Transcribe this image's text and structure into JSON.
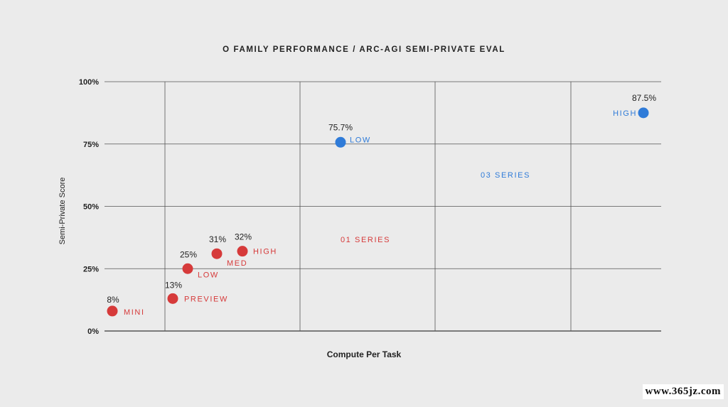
{
  "chart_data": {
    "type": "scatter",
    "title": "O FAMILY PERFORMANCE / ARC-AGI SEMI-PRIVATE EVAL",
    "xlabel": "Compute Per Task",
    "ylabel": "Semi-Private Score",
    "ylim": [
      0,
      100
    ],
    "y_ticks": [
      "0%",
      "25%",
      "50%",
      "75%",
      "100%"
    ],
    "x_ticks": [],
    "grid": true,
    "colors": {
      "o1": "#d63a3a",
      "o3": "#2f7bd8",
      "grid": "#555555",
      "text": "#222222"
    },
    "region_labels": [
      "01 SERIES",
      "03 SERIES"
    ],
    "series": [
      {
        "name": "01 SERIES",
        "points": [
          {
            "label": "MINI",
            "value_label": "8%",
            "y": 8
          },
          {
            "label": "PREVIEW",
            "value_label": "13%",
            "y": 13
          },
          {
            "label": "LOW",
            "value_label": "25%",
            "y": 25
          },
          {
            "label": "MED",
            "value_label": "31%",
            "y": 31
          },
          {
            "label": "HIGH",
            "value_label": "32%",
            "y": 32
          }
        ]
      },
      {
        "name": "03 SERIES",
        "points": [
          {
            "label": "LOW",
            "value_label": "75.7%",
            "y": 75.7
          },
          {
            "label": "HIGH",
            "value_label": "87.5%",
            "y": 87.5
          }
        ]
      }
    ]
  },
  "watermark": "www.365jz.com"
}
